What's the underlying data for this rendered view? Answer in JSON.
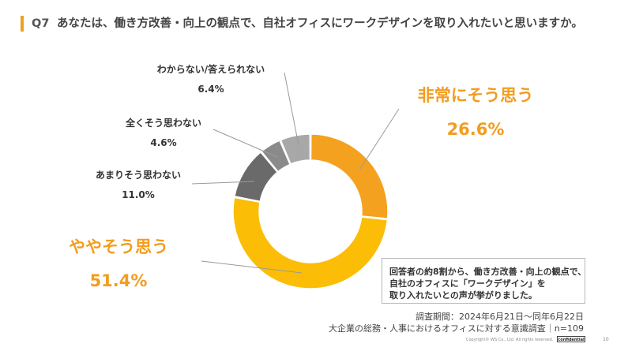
{
  "header": {
    "q_label": "Q7",
    "question": "あなたは、働き方改善・向上の観点で、自社オフィスにワークデザインを取り入れたいと思いますか。"
  },
  "colors": {
    "accent_bar": "#f0a21a",
    "highlight_text": "#f39c1e",
    "leader_line": "#9a9a9a"
  },
  "chart_data": {
    "type": "pie",
    "subtype": "donut",
    "title": "",
    "start_angle_deg": 0,
    "direction": "clockwise",
    "slices": [
      {
        "label": "非常にそう思う",
        "value": 26.6,
        "value_label": "26.6%",
        "color": "#f4a11f"
      },
      {
        "label": "ややそう思う",
        "value": 51.4,
        "value_label": "51.4%",
        "color": "#fbbd06"
      },
      {
        "label": "あまりそう思わない",
        "value": 11.0,
        "value_label": "11.0%",
        "color": "#6a6a6a"
      },
      {
        "label": "全くそう思わない",
        "value": 4.6,
        "value_label": "4.6%",
        "color": "#8a8a8a"
      },
      {
        "label": "わからない/答えられない",
        "value": 6.4,
        "value_label": "6.4%",
        "color": "#a8a8a8"
      }
    ]
  },
  "callout": {
    "lines": [
      "回答者の約8割から、働き方改善・向上の観点で、",
      "自社のオフィスに「ワークデザイン」を",
      "取り入れたいとの声が挙がりました。"
    ]
  },
  "survey": {
    "period": "調査期間：2024年6月21日〜同年6月22日",
    "target": "大企業の総務・人事におけるオフィスに対する意識調査｜n=109"
  },
  "footer": {
    "copyright": "Copyright© WS Co., Ltd. All rights reserved.",
    "confidential": "confidential",
    "page": "10"
  }
}
